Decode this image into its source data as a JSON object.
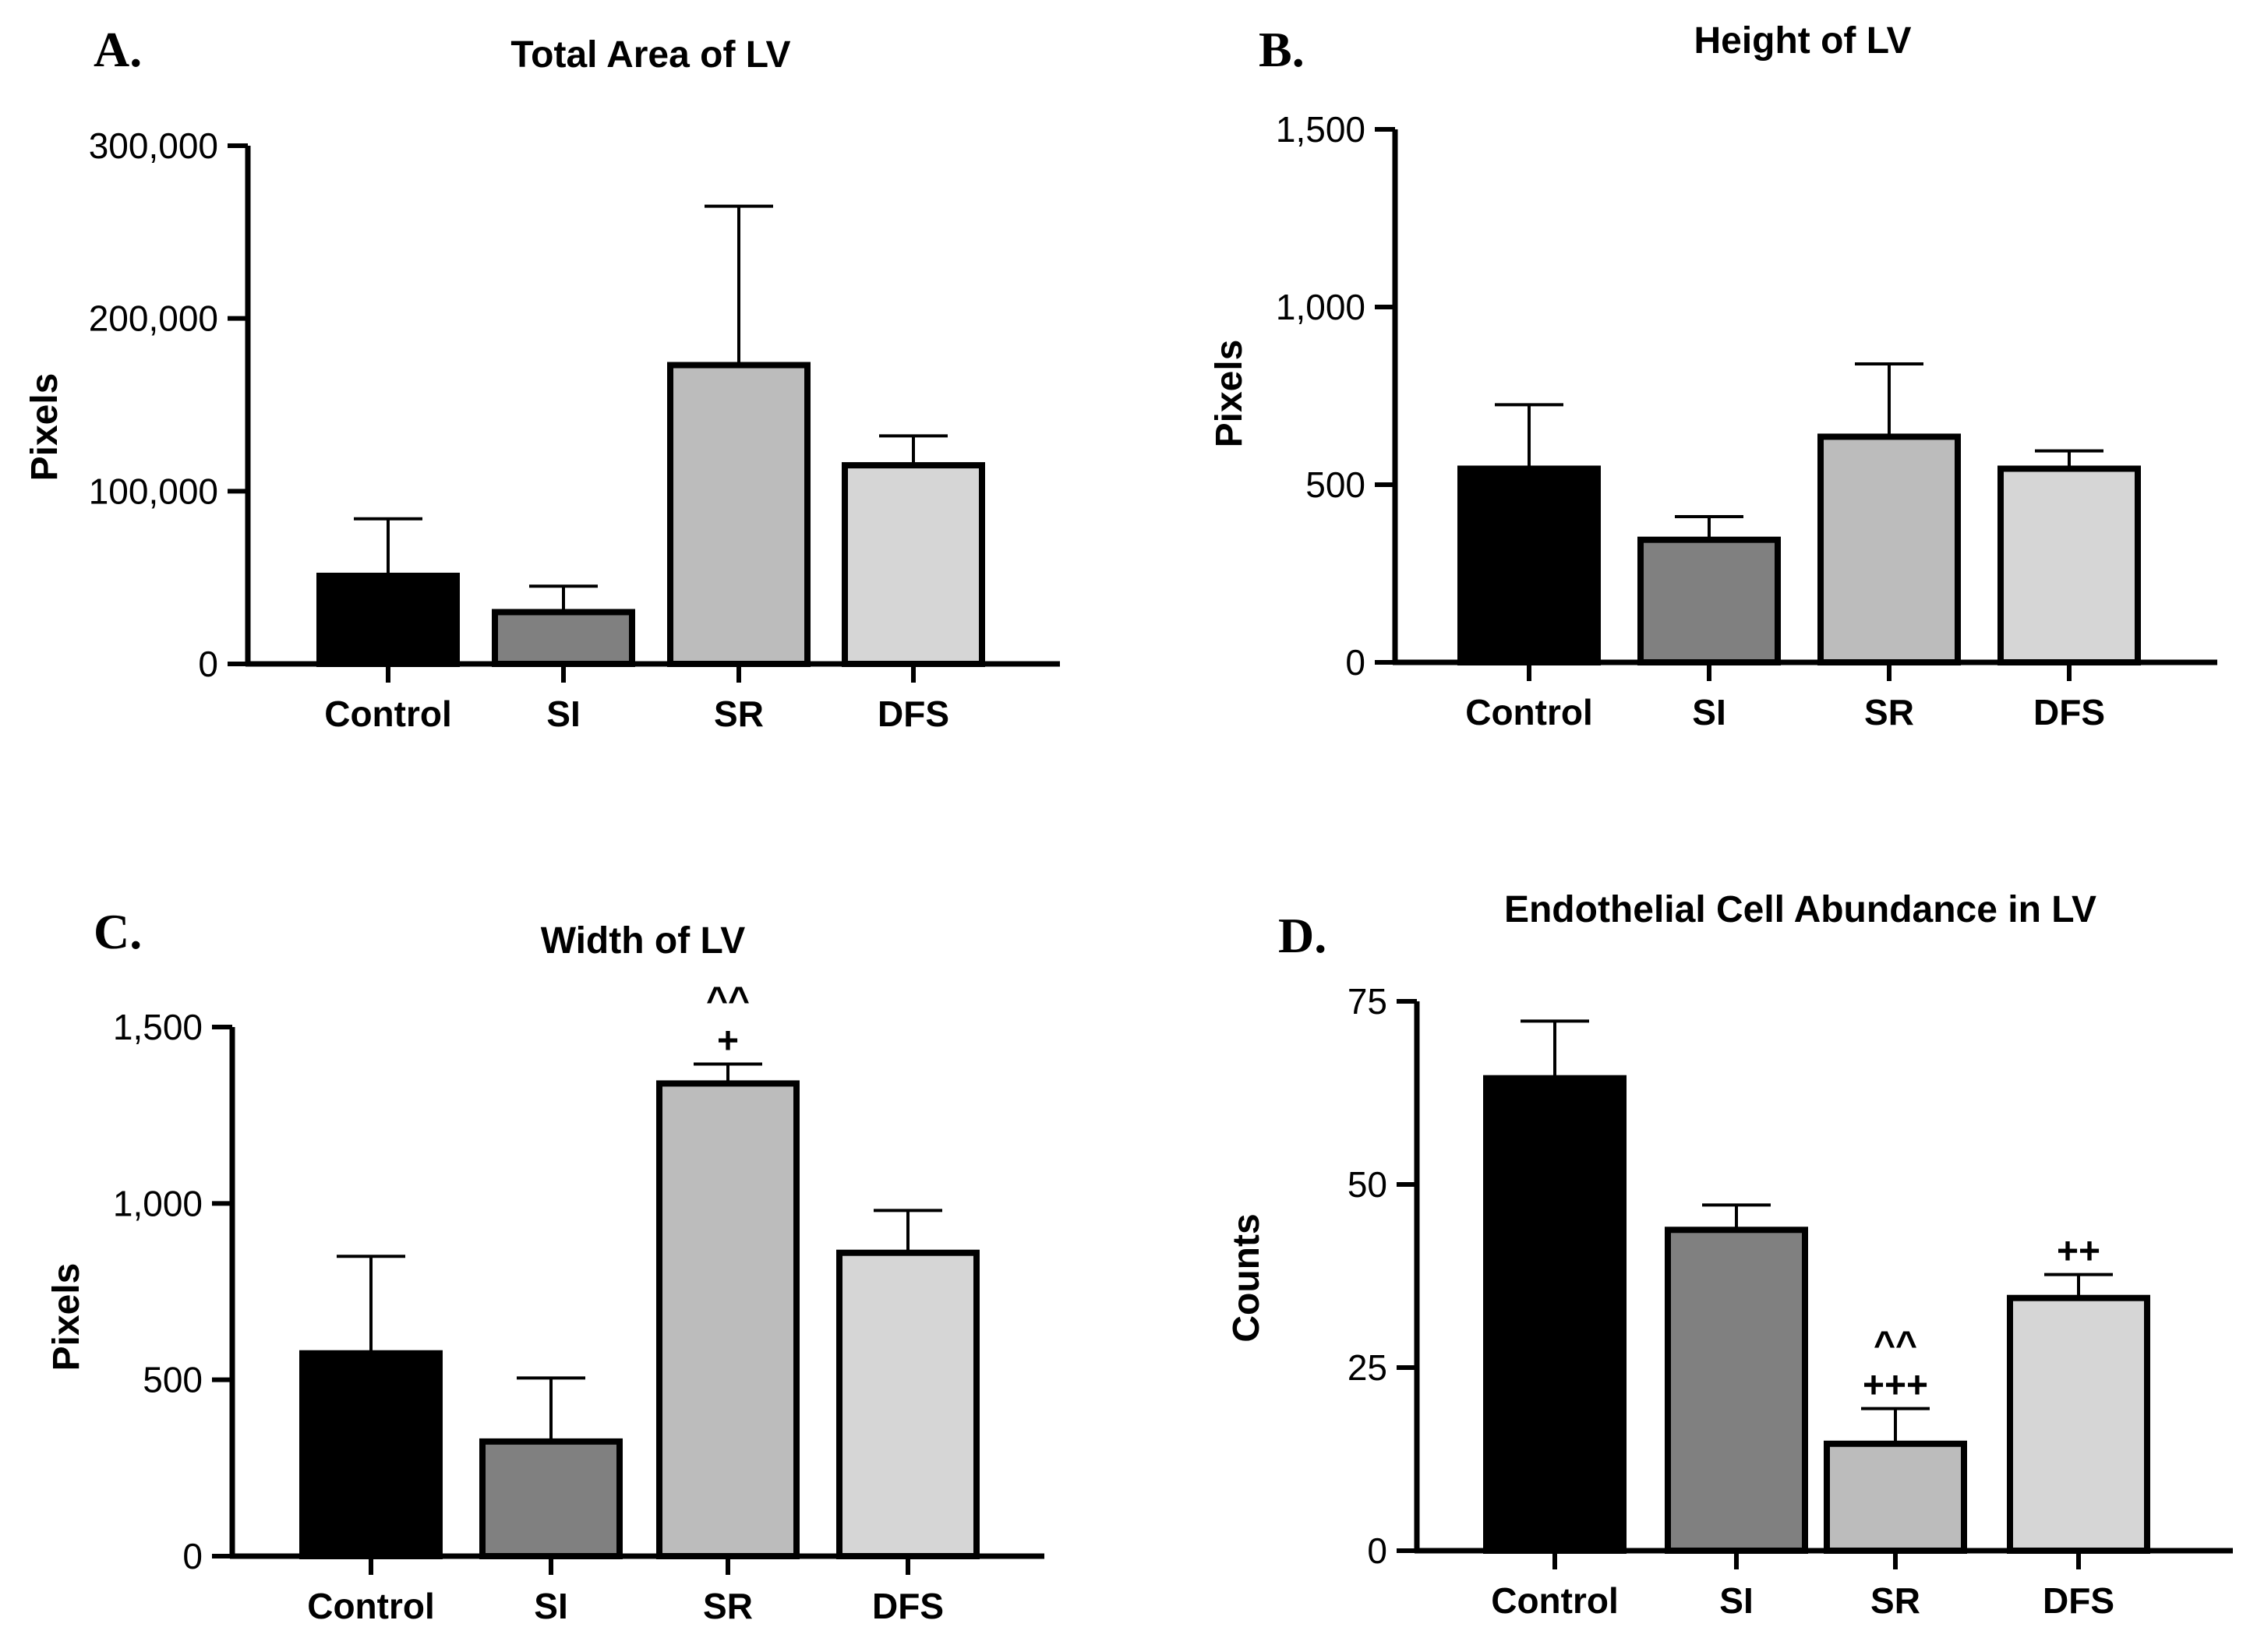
{
  "colors": {
    "Control": "#000000",
    "SI": "#808080",
    "SR": "#bcbcbc",
    "DFS": "#d6d6d6",
    "axis": "#000000"
  },
  "chart_data": [
    {
      "panel": "A.",
      "type": "bar",
      "title": "Total Area of LV",
      "ylabel": "Pixels",
      "xlabel": "",
      "categories": [
        "Control",
        "SI",
        "SR",
        "DFS"
      ],
      "values": [
        51000,
        30000,
        173000,
        115000
      ],
      "errors_upper": [
        84000,
        45000,
        265000,
        132000
      ],
      "ylim": [
        0,
        300000
      ],
      "yticks": [
        0,
        100000,
        200000,
        300000
      ],
      "ytick_labels": [
        "0",
        "100,000",
        "200,000",
        "300,000"
      ],
      "annotations": []
    },
    {
      "panel": "B.",
      "type": "bar",
      "title": "Height of LV",
      "ylabel": "Pixels",
      "xlabel": "",
      "categories": [
        "Control",
        "SI",
        "SR",
        "DFS"
      ],
      "values": [
        545,
        345,
        635,
        545
      ],
      "errors_upper": [
        725,
        410,
        840,
        595
      ],
      "ylim": [
        0,
        1500
      ],
      "yticks": [
        0,
        500,
        1000,
        1500
      ],
      "ytick_labels": [
        "0",
        "500",
        "1,000",
        "1,500"
      ],
      "annotations": []
    },
    {
      "panel": "C.",
      "type": "bar",
      "title": "Width of LV",
      "ylabel": "Pixels",
      "xlabel": "",
      "categories": [
        "Control",
        "SI",
        "SR",
        "DFS"
      ],
      "values": [
        575,
        325,
        1340,
        860
      ],
      "errors_upper": [
        850,
        505,
        1395,
        980
      ],
      "ylim": [
        0,
        1500
      ],
      "yticks": [
        0,
        500,
        1000,
        1500
      ],
      "ytick_labels": [
        "0",
        "500",
        "1,000",
        "1,500"
      ],
      "annotations": [
        {
          "category": "SR",
          "lines": [
            "^^",
            "+"
          ]
        }
      ]
    },
    {
      "panel": "D.",
      "type": "bar",
      "title": "Endothelial Cell Abundance in LV",
      "ylabel": "Counts",
      "xlabel": "",
      "categories": [
        "Control",
        "SI",
        "SR",
        "DFS"
      ],
      "values": [
        64.5,
        43.8,
        14.6,
        34.5
      ],
      "errors_upper": [
        72.3,
        47.2,
        19.4,
        37.7
      ],
      "ylim": [
        0,
        75
      ],
      "yticks": [
        0,
        25,
        50,
        75
      ],
      "ytick_labels": [
        "0",
        "25",
        "50",
        "75"
      ],
      "annotations": [
        {
          "category": "SR",
          "lines": [
            "^^",
            "+++"
          ]
        },
        {
          "category": "DFS",
          "lines": [
            "++"
          ]
        }
      ]
    }
  ]
}
